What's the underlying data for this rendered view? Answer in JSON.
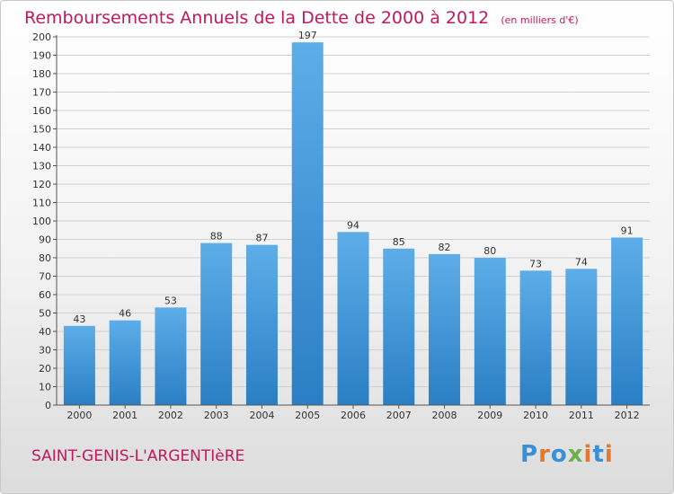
{
  "header": {
    "title": "Remboursements Annuels de la Dette de 2000 à 2012",
    "unit": "(en milliers d'€)"
  },
  "footer": {
    "commune": "SAINT-GENIS-L'ARGENTIèRE",
    "logo": "Proxiti"
  },
  "colors": {
    "accent": "#c2185b",
    "bar_light": "#5dade8",
    "bar_dark": "#2a7fc4",
    "logo_letters": [
      "#3a8fd6",
      "#e8772e",
      "#3a8fd6",
      "#6ab04c",
      "#e8772e",
      "#3a8fd6",
      "#e8772e"
    ]
  },
  "chart_data": {
    "type": "bar",
    "categories": [
      "2000",
      "2001",
      "2002",
      "2003",
      "2004",
      "2005",
      "2006",
      "2007",
      "2008",
      "2009",
      "2010",
      "2011",
      "2012"
    ],
    "values": [
      43,
      46,
      53,
      88,
      87,
      197,
      94,
      85,
      82,
      80,
      73,
      74,
      91
    ],
    "title": "Remboursements Annuels de la Dette de 2000 à 2012",
    "ylim": [
      0,
      200
    ],
    "yticks": [
      0,
      10,
      20,
      30,
      40,
      50,
      60,
      70,
      80,
      90,
      100,
      110,
      120,
      130,
      140,
      150,
      160,
      170,
      180,
      190,
      200
    ],
    "grid": true,
    "data_labels": true
  }
}
